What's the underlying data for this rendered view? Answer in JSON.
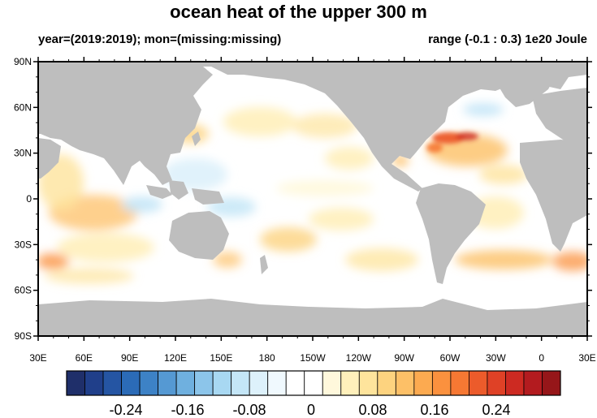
{
  "title": "ocean heat of the upper 300 m",
  "subtitle_left": "year=(2019:2019); mon=(missing:missing)",
  "subtitle_right": "range (-0.1 : 0.3) 1e20 Joule",
  "y_ticks": [
    "90N",
    "60N",
    "30N",
    "0",
    "30S",
    "60S",
    "90S"
  ],
  "x_ticks": [
    "30E",
    "60E",
    "90E",
    "120E",
    "150E",
    "180",
    "150W",
    "120W",
    "90W",
    "60W",
    "30W",
    "0",
    "30E"
  ],
  "colorbar": {
    "colors": [
      "#1f2f6a",
      "#203f8a",
      "#2555a3",
      "#2b6bb7",
      "#3d82c6",
      "#5599d3",
      "#6fb0df",
      "#8cc5ea",
      "#a8d8f2",
      "#c4e6f7",
      "#ddf1fb",
      "#f0f9fe",
      "#ffffff",
      "#ffffff",
      "#fff8dc",
      "#fff0bb",
      "#fee49c",
      "#fdd37f",
      "#fdc067",
      "#fcaa50",
      "#fb913e",
      "#f67833",
      "#ec5b2b",
      "#df4126",
      "#cd2a22",
      "#b31b1f",
      "#961619"
    ],
    "labels": [
      "-0.24",
      "-0.16",
      "-0.08",
      "0",
      "0.08",
      "0.16",
      "0.24"
    ]
  },
  "map_colors": {
    "land": "#bebebe",
    "ocean": "#ffffff"
  }
}
